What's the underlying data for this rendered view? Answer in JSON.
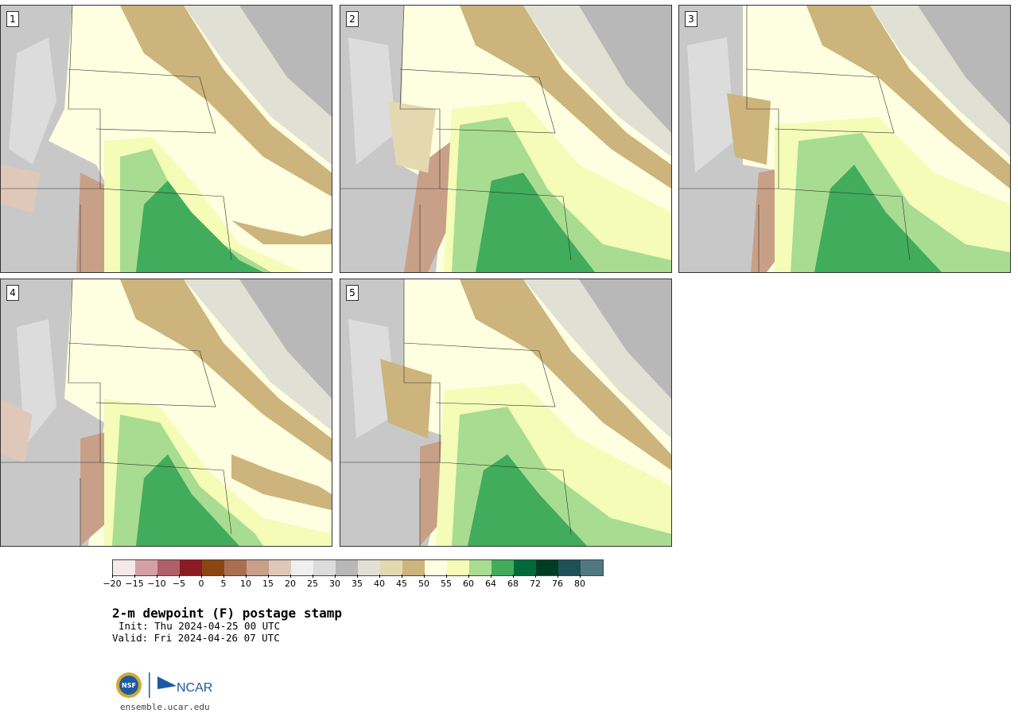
{
  "panels": [
    {
      "label": "1"
    },
    {
      "label": "2"
    },
    {
      "label": "3"
    },
    {
      "label": "4"
    },
    {
      "label": "5"
    }
  ],
  "legend": {
    "colors": [
      "#f5eaea",
      "#d4a0a6",
      "#b06068",
      "#8b1a22",
      "#8b4513",
      "#a87050",
      "#c8a088",
      "#e0c8b8",
      "#efefef",
      "#dcdcdc",
      "#b8b8b8",
      "#e0e0d4",
      "#e4d8b0",
      "#ccb47c",
      "#fefee0",
      "#f4fcb8",
      "#a8dc90",
      "#40ac5c",
      "#006a38",
      "#003c24",
      "#1e5058",
      "#507880"
    ],
    "ticks": [
      "−20",
      "−15",
      "−10",
      "−5",
      "0",
      "5",
      "10",
      "15",
      "20",
      "25",
      "30",
      "35",
      "40",
      "45",
      "50",
      "55",
      "60",
      "64",
      "68",
      "72",
      "76",
      "80"
    ]
  },
  "title": "2-m dewpoint (F) postage stamp",
  "init": "Init: Thu 2024-04-25 00 UTC",
  "valid": "Valid: Fri 2024-04-26 07 UTC",
  "logo": {
    "org1": "NSF",
    "org2": "NCAR"
  },
  "website": "ensemble.ucar.edu"
}
